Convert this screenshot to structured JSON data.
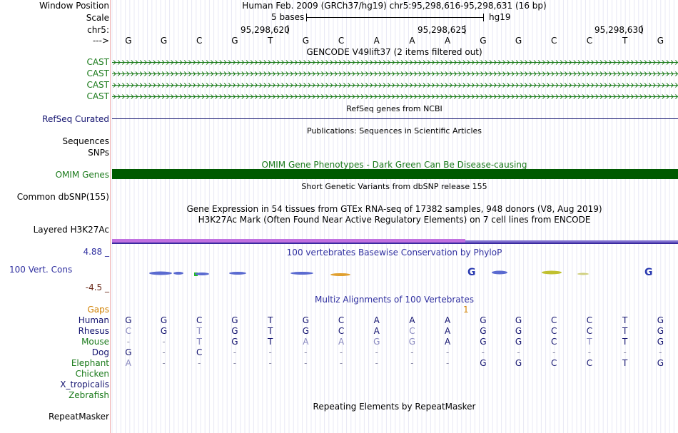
{
  "header": {
    "window_position_label": "Window Position",
    "window_position_value": "Human Feb. 2009 (GRCh37/hg19)   chr5:95,298,616-95,298,631 (16 bp)",
    "scale_label": "Scale",
    "scale_value": "5 bases",
    "scale_assembly": "hg19",
    "chrom_label": "chr5:",
    "coords": [
      "95,298,620",
      "95,298,625",
      "95,298,630"
    ],
    "strand_label": "--->"
  },
  "reference_bases": [
    "G",
    "G",
    "C",
    "G",
    "T",
    "G",
    "C",
    "A",
    "A",
    "A",
    "G",
    "G",
    "C",
    "C",
    "T",
    "G"
  ],
  "gencode": {
    "title": "GENCODE V49lift37 (2 items filtered out)",
    "tracks": [
      "CAST",
      "CAST",
      "CAST",
      "CAST"
    ],
    "color": "#1a7a1a"
  },
  "refseq": {
    "label": "RefSeq Curated",
    "title": "RefSeq genes from NCBI",
    "color": "#141470"
  },
  "publications": {
    "label": "Sequences",
    "title": "Publications: Sequences in Scientific Articles"
  },
  "snps_label": "SNPs",
  "omim": {
    "title": "OMIM Gene Phenotypes - Dark Green Can Be Disease-causing",
    "label": "OMIM Genes",
    "color": "#005a00",
    "label_color": "#1a7a1a"
  },
  "dbsnp": {
    "label": "Common dbSNP(155)",
    "title": "Short Genetic Variants from dbSNP release 155"
  },
  "gtex": {
    "title": "Gene Expression in 54 tissues from GTEx RNA-seq of 17382 samples, 948 donors (V8, Aug 2019)"
  },
  "h3k27ac": {
    "title": "H3K27Ac Mark (Often Found Near Active Regulatory Elements) on 7 cell lines from ENCODE",
    "label": "Layered H3K27Ac",
    "color_a": "#c070e0",
    "color_b": "#8070d0"
  },
  "phylop": {
    "title": "100 vertebrates Basewise Conservation by PhyloP",
    "label": "100 Vert. Cons",
    "max": "4.88 _",
    "min": "-4.5 _",
    "color": "#3030a0",
    "min_color": "#6a2a1a"
  },
  "multiz": {
    "title": "Multiz Alignments of 100 Vertebrates",
    "gaps_label": "Gaps",
    "gaps_value": "1",
    "gaps_color": "#d08000",
    "species": [
      {
        "name": "Human",
        "bases": [
          "G",
          "G",
          "C",
          "G",
          "T",
          "G",
          "C",
          "A",
          "A",
          "A",
          "G",
          "G",
          "C",
          "C",
          "T",
          "G"
        ]
      },
      {
        "name": "Rhesus",
        "bases": [
          "C",
          "G",
          "T",
          "G",
          "T",
          "G",
          "C",
          "A",
          "C",
          "A",
          "G",
          "G",
          "C",
          "C",
          "T",
          "G"
        ]
      },
      {
        "name": "Mouse",
        "bases": [
          "-",
          "-",
          "T",
          "G",
          "T",
          "A",
          "A",
          "G",
          "G",
          "A",
          "G",
          "G",
          "C",
          "T",
          "T",
          "G"
        ]
      },
      {
        "name": "Dog",
        "bases": [
          "G",
          "-",
          "C",
          "-",
          "-",
          "-",
          "-",
          "-",
          "-",
          "-",
          "-",
          "-",
          "-",
          "-",
          "-",
          "-"
        ]
      },
      {
        "name": "Elephant",
        "bases": [
          "A",
          "-",
          "-",
          "-",
          "-",
          "-",
          "-",
          "-",
          "-",
          "-",
          "G",
          "G",
          "C",
          "C",
          "T",
          "G"
        ]
      },
      {
        "name": "Chicken",
        "bases": []
      },
      {
        "name": "X_tropicalis",
        "bases": []
      },
      {
        "name": "Zebrafish",
        "bases": []
      }
    ],
    "name_colors": [
      "#141470",
      "#141470",
      "#1a7a1a",
      "#141470",
      "#1a7a1a",
      "#1a7a1a",
      "#141470",
      "#1a7a1a"
    ]
  },
  "repeatmasker": {
    "title": "Repeating Elements by RepeatMasker",
    "label": "RepeatMasker"
  }
}
